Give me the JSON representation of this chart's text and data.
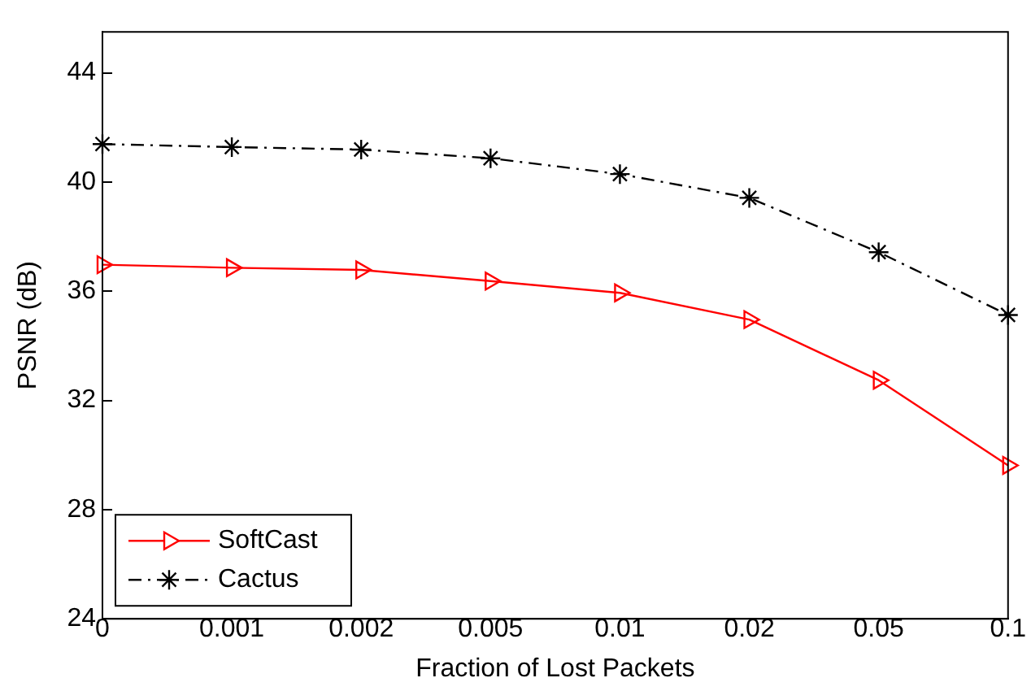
{
  "chart_data": {
    "type": "line",
    "xlabel": "Fraction of Lost Packets",
    "ylabel": "PSNR (dB)",
    "categories": [
      "0",
      "0.001",
      "0.002",
      "0.005",
      "0.01",
      "0.02",
      "0.05",
      "0.1"
    ],
    "series": [
      {
        "name": "SoftCast",
        "color": "#ff0000",
        "marker": "triangle",
        "line_style": "solid",
        "values": [
          36.97,
          36.86,
          36.78,
          36.37,
          35.94,
          34.96,
          32.74,
          29.62
        ]
      },
      {
        "name": "Cactus",
        "color": "#000000",
        "marker": "cross",
        "line_style": "dashed",
        "values": [
          41.39,
          41.28,
          41.19,
          40.87,
          40.29,
          39.42,
          37.43,
          35.13
        ]
      }
    ],
    "ylim": [
      24,
      45.5
    ],
    "yticks": [
      24,
      28,
      32,
      36,
      40,
      44
    ],
    "grid": false,
    "legend": "bottom left"
  }
}
